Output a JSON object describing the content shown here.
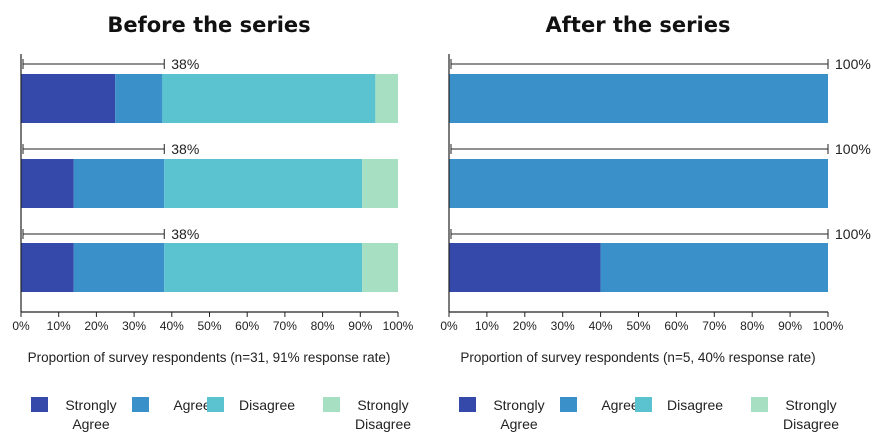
{
  "colors": {
    "strongly_agree": "#3449a9",
    "agree": "#3a90c8",
    "disagree": "#5bc3d0",
    "strongly_disagree": "#a6dfc2",
    "axis": "#222222"
  },
  "chart_data": [
    {
      "type": "bar",
      "orientation": "horizontal",
      "stacked": true,
      "title": "Before the series",
      "xlabel": "Proportion of survey respondents (n=31, 91% response rate)",
      "ylabel": "",
      "xlim": [
        0,
        100
      ],
      "x_ticks": [
        "0%",
        "10%",
        "20%",
        "30%",
        "40%",
        "50%",
        "60%",
        "70%",
        "80%",
        "90%",
        "100%"
      ],
      "series": [
        {
          "name": "Strongly Agree",
          "values": [
            25,
            14,
            14
          ]
        },
        {
          "name": "Agree",
          "values": [
            12.5,
            24,
            24
          ]
        },
        {
          "name": "Disagree",
          "values": [
            56.5,
            52.5,
            52.5
          ]
        },
        {
          "name": "Strongly Disagree",
          "values": [
            6,
            9.5,
            9.5
          ]
        }
      ],
      "range_annotations": [
        {
          "value": 38,
          "label": "38%"
        },
        {
          "value": 38,
          "label": "38%"
        },
        {
          "value": 38,
          "label": "38%"
        }
      ],
      "legend": {
        "position": "bottom",
        "items": [
          {
            "line1": "Strongly",
            "line2": "Agree"
          },
          {
            "line1": "Agree",
            "line2": ""
          },
          {
            "line1": "Disagree",
            "line2": ""
          },
          {
            "line1": "Strongly",
            "line2": "Disagree"
          }
        ]
      }
    },
    {
      "type": "bar",
      "orientation": "horizontal",
      "stacked": true,
      "title": "After the series",
      "xlabel": "Proportion of survey respondents (n=5, 40% response rate)",
      "ylabel": "",
      "xlim": [
        0,
        100
      ],
      "x_ticks": [
        "0%",
        "10%",
        "20%",
        "30%",
        "40%",
        "50%",
        "60%",
        "70%",
        "80%",
        "90%",
        "100%"
      ],
      "series": [
        {
          "name": "Strongly Agree",
          "values": [
            0,
            0,
            40
          ]
        },
        {
          "name": "Agree",
          "values": [
            100,
            100,
            60
          ]
        },
        {
          "name": "Disagree",
          "values": [
            0,
            0,
            0
          ]
        },
        {
          "name": "Strongly Disagree",
          "values": [
            0,
            0,
            0
          ]
        }
      ],
      "range_annotations": [
        {
          "value": 100,
          "label": "100%"
        },
        {
          "value": 100,
          "label": "100%"
        },
        {
          "value": 100,
          "label": "100%"
        }
      ],
      "legend": {
        "position": "bottom",
        "items": [
          {
            "line1": "Strongly",
            "line2": "Agree"
          },
          {
            "line1": "Agree",
            "line2": ""
          },
          {
            "line1": "Disagree",
            "line2": ""
          },
          {
            "line1": "Strongly",
            "line2": "Disagree"
          }
        ]
      }
    }
  ]
}
